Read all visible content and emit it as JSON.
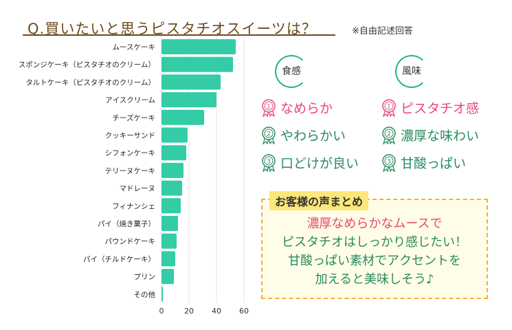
{
  "header": {
    "title": "Q.買いたいと思うピスタチオスイーツは？",
    "note": "※自由記述回答"
  },
  "chart_data": {
    "type": "bar",
    "orientation": "horizontal",
    "categories": [
      "ムースケーキ",
      "スポンジケーキ（ピスタチオのクリーム）",
      "タルトケーキ（ピスタチオのクリーム）",
      "アイスクリーム",
      "チーズケーキ",
      "クッキーサンド",
      "シフォンケーキ",
      "テリーヌケーキ",
      "マドレーヌ",
      "フィナンシェ",
      "パイ（焼き菓子）",
      "パウンドケーキ",
      "パイ（チルドケーキ）",
      "プリン",
      "その他"
    ],
    "values": [
      54,
      52,
      43,
      40,
      31,
      19,
      18,
      16,
      15,
      14,
      12,
      11,
      10,
      9,
      1
    ],
    "xlim": [
      0,
      60
    ],
    "xticks": [
      "0",
      "20",
      "40",
      "60"
    ],
    "color": "#33cca6",
    "grid": true
  },
  "panels": [
    {
      "label": "食感",
      "items": [
        {
          "rank": "1",
          "text": "なめらか",
          "color": "#e8477a"
        },
        {
          "rank": "2",
          "text": "やわらかい",
          "color": "#2a8a5f"
        },
        {
          "rank": "3",
          "text": "口どけが良い",
          "color": "#2a8a5f"
        }
      ]
    },
    {
      "label": "風味",
      "items": [
        {
          "rank": "1",
          "text": "ピスタチオ感",
          "color": "#e8477a"
        },
        {
          "rank": "2",
          "text": "濃厚な味わい",
          "color": "#2a8a5f"
        },
        {
          "rank": "3",
          "text": "甘酸っぱい",
          "color": "#2a8a5f"
        }
      ]
    }
  ],
  "summary": {
    "title": "お客様の声まとめ",
    "line1": "濃厚なめらかなムースで",
    "line2": "ピスタチオはしっかり感じたい！",
    "line3": "甘酸っぱい素材でアクセントを",
    "line4": "加えると美味しそう♪"
  }
}
